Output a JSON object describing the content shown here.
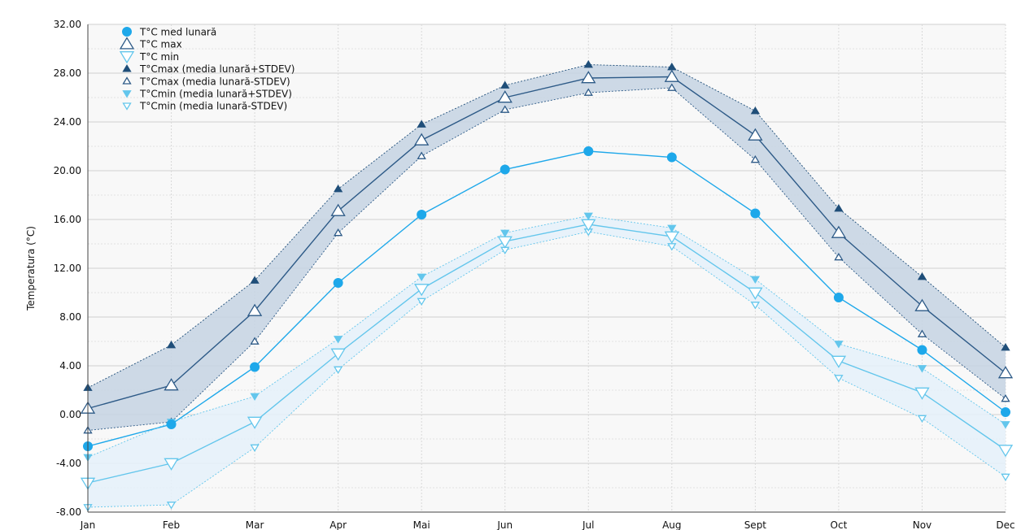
{
  "chart_data": {
    "type": "line",
    "ylabel": "Temperatura (°C)",
    "xlabel": "",
    "categories": [
      "Jan",
      "Feb",
      "Mar",
      "Apr",
      "Mai",
      "Jun",
      "Jul",
      "Aug",
      "Sept",
      "Oct",
      "Nov",
      "Dec"
    ],
    "ylim": [
      -8,
      32
    ],
    "yticks": [
      "-8.00",
      "-4.00",
      "0.00",
      "4.00",
      "8.00",
      "12.00",
      "16.00",
      "20.00",
      "24.00",
      "28.00",
      "32.00"
    ],
    "grid": true,
    "legend_position": "top-left",
    "series": [
      {
        "name": "T°C med lunară",
        "marker": "circle",
        "color": "#1ea8ea",
        "values": [
          -2.6,
          -0.8,
          3.9,
          10.8,
          16.4,
          20.1,
          21.6,
          21.1,
          16.5,
          9.6,
          5.3,
          0.2
        ]
      },
      {
        "name": "T°C max",
        "marker": "triangle-up-open",
        "color": "#2d5a87",
        "values": [
          0.5,
          2.4,
          8.5,
          16.7,
          22.5,
          26.0,
          27.6,
          27.7,
          22.9,
          14.9,
          8.9,
          3.4
        ]
      },
      {
        "name": "T°C min",
        "marker": "triangle-down-open",
        "color": "#63c6ec",
        "values": [
          -5.6,
          -4.0,
          -0.6,
          5.0,
          10.3,
          14.2,
          15.6,
          14.6,
          10.0,
          4.4,
          1.8,
          -2.9
        ]
      },
      {
        "name": "T°Cmax (media lunară+STDEV)",
        "marker": "triangle-up-filled",
        "color": "#1f4e79",
        "values": [
          2.2,
          5.7,
          11.0,
          18.5,
          23.8,
          27.0,
          28.7,
          28.5,
          24.9,
          16.9,
          11.3,
          5.5
        ]
      },
      {
        "name": "T°Cmax (media lunară-STDEV)",
        "marker": "triangle-up-open-small",
        "color": "#2d5a87",
        "values": [
          -1.3,
          -0.6,
          6.0,
          14.9,
          21.2,
          25.0,
          26.4,
          26.8,
          20.9,
          12.9,
          6.6,
          1.3
        ]
      },
      {
        "name": "T°Cmin (media lunară+STDEV)",
        "marker": "triangle-down-filled",
        "color": "#63c6ec",
        "values": [
          -3.5,
          -0.6,
          1.5,
          6.2,
          11.3,
          14.9,
          16.3,
          15.3,
          11.1,
          5.8,
          3.8,
          -0.8
        ]
      },
      {
        "name": "T°Cmin (media lunară-STDEV)",
        "marker": "triangle-down-open-small",
        "color": "#63c6ec",
        "values": [
          -7.6,
          -7.4,
          -2.7,
          3.7,
          9.3,
          13.5,
          15.0,
          13.8,
          9.0,
          3.0,
          -0.3,
          -5.1
        ]
      }
    ],
    "bands": [
      {
        "upper": "T°Cmax (media lunară+STDEV)",
        "lower": "T°Cmax (media lunară-STDEV)",
        "color": "#c5d4e3"
      },
      {
        "upper": "T°Cmin (media lunară+STDEV)",
        "lower": "T°Cmin (media lunară-STDEV)",
        "color": "#e5f1fa"
      }
    ]
  }
}
